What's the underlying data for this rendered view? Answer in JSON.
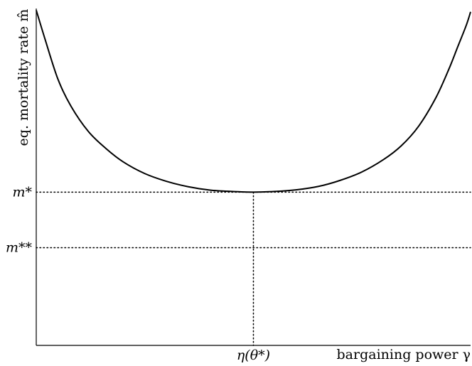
{
  "chart_data": {
    "type": "line",
    "title": "",
    "xlabel": "bargaining power γ",
    "ylabel": "eq. mortality rate m̂",
    "xlim": [
      0,
      1
    ],
    "ylim": [
      0,
      1
    ],
    "grid": false,
    "series": [
      {
        "x": [
          0.0,
          0.02,
          0.05,
          0.08,
          0.12,
          0.16,
          0.2,
          0.25,
          0.3,
          0.35,
          0.4,
          0.45,
          0.5,
          0.55,
          0.6,
          0.65,
          0.7,
          0.75,
          0.8,
          0.84,
          0.88,
          0.92,
          0.95,
          0.97,
          0.99,
          1.0
        ],
        "y": [
          0.995,
          0.91,
          0.79,
          0.71,
          0.635,
          0.585,
          0.545,
          0.51,
          0.487,
          0.471,
          0.461,
          0.457,
          0.455,
          0.457,
          0.462,
          0.472,
          0.49,
          0.515,
          0.552,
          0.592,
          0.65,
          0.735,
          0.82,
          0.885,
          0.95,
          0.99
        ]
      }
    ],
    "reference_lines": [
      {
        "axis": "y",
        "value": 0.455,
        "label": "m*",
        "style": "dotted"
      },
      {
        "axis": "y",
        "value": 0.29,
        "label": "m**",
        "style": "dotted"
      },
      {
        "axis": "x",
        "value": 0.5,
        "label": "η(θ*)",
        "style": "dotted"
      }
    ]
  }
}
